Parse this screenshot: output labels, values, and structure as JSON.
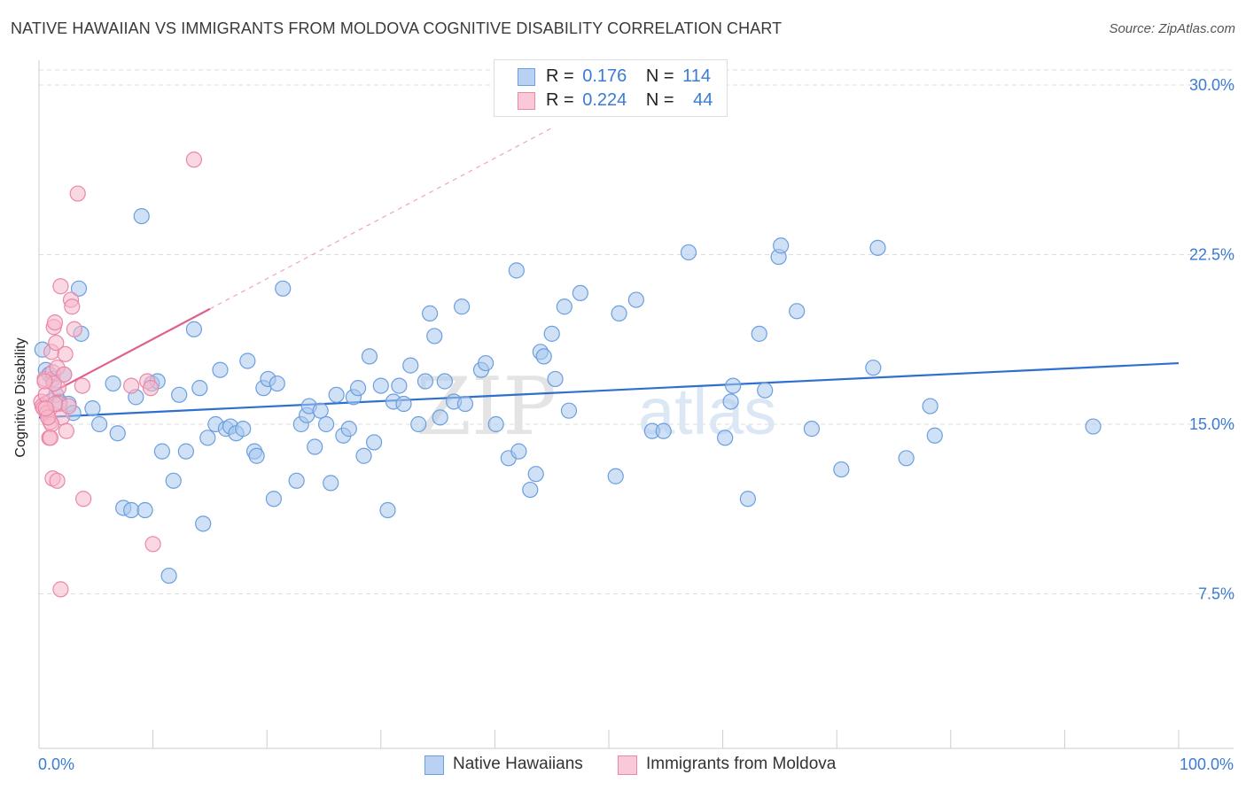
{
  "header": {
    "title": "NATIVE HAWAIIAN VS IMMIGRANTS FROM MOLDOVA COGNITIVE DISABILITY CORRELATION CHART",
    "source": "Source: ZipAtlas.com"
  },
  "legend_stats": {
    "rows": [
      {
        "r_label": "R =",
        "r_value": "0.176",
        "n_label": "N =",
        "n_value": "114"
      },
      {
        "r_label": "R =",
        "r_value": "0.224",
        "n_label": "N =",
        "n_value": "44"
      }
    ]
  },
  "bottom_legend": {
    "items": [
      "Native Hawaiians",
      "Immigrants from Moldova"
    ]
  },
  "watermark": {
    "zip": "ZIP",
    "atlas": "atlas"
  },
  "colors": {
    "blue_fill": "#a9c8ef",
    "blue_stroke": "#6a9fe0",
    "blue_line": "#2f6fd0",
    "pink_fill": "#f6b8cb",
    "pink_stroke": "#ea87a8",
    "pink_line": "#e0608a",
    "axis_label": "#3b7bd4",
    "grid": "#dddddd"
  },
  "chart_data": {
    "type": "scatter",
    "title": "NATIVE HAWAIIAN VS IMMIGRANTS FROM MOLDOVA COGNITIVE DISABILITY CORRELATION CHART",
    "xlabel": "",
    "ylabel": "Cognitive Disability",
    "xlim": [
      0,
      100
    ],
    "ylim": [
      0,
      30
    ],
    "x_tick_labels": [
      {
        "value": 0,
        "label": "0.0%"
      },
      {
        "value": 100,
        "label": "100.0%"
      }
    ],
    "x_minor_ticks": [
      0,
      10,
      20,
      30,
      40,
      50,
      60,
      70,
      80,
      90,
      100
    ],
    "y_ticks": [
      {
        "value": 7.5,
        "label": "7.5%"
      },
      {
        "value": 15.0,
        "label": "15.0%"
      },
      {
        "value": 22.5,
        "label": "22.5%"
      },
      {
        "value": 30.0,
        "label": "30.0%"
      }
    ],
    "grid": true,
    "legend_placement": "top-center",
    "series": [
      {
        "name": "Native Hawaiians",
        "color": "blue",
        "R": 0.176,
        "N": 114,
        "trend": {
          "x0": 0,
          "y0": 15.3,
          "x1": 100,
          "y1": 17.7
        },
        "points": [
          [
            0.3,
            18.3
          ],
          [
            0.6,
            17.4
          ],
          [
            0.9,
            17.2
          ],
          [
            1.2,
            17.0
          ],
          [
            1.5,
            16.3
          ],
          [
            1.8,
            16.0
          ],
          [
            2.2,
            17.2
          ],
          [
            2.6,
            15.9
          ],
          [
            3.0,
            15.5
          ],
          [
            3.5,
            21.0
          ],
          [
            3.7,
            19.0
          ],
          [
            4.7,
            15.7
          ],
          [
            5.3,
            15.0
          ],
          [
            6.5,
            16.8
          ],
          [
            6.9,
            14.6
          ],
          [
            7.4,
            11.3
          ],
          [
            8.1,
            11.2
          ],
          [
            8.5,
            16.2
          ],
          [
            9.0,
            24.2
          ],
          [
            9.3,
            11.2
          ],
          [
            9.9,
            16.8
          ],
          [
            10.4,
            16.9
          ],
          [
            10.8,
            13.8
          ],
          [
            11.4,
            8.3
          ],
          [
            11.8,
            12.5
          ],
          [
            12.3,
            16.3
          ],
          [
            12.9,
            13.8
          ],
          [
            13.6,
            19.2
          ],
          [
            14.1,
            16.6
          ],
          [
            14.4,
            10.6
          ],
          [
            14.8,
            14.4
          ],
          [
            15.5,
            15.0
          ],
          [
            15.9,
            17.4
          ],
          [
            16.4,
            14.8
          ],
          [
            16.8,
            14.9
          ],
          [
            17.3,
            14.6
          ],
          [
            17.9,
            14.8
          ],
          [
            18.3,
            17.8
          ],
          [
            18.9,
            13.8
          ],
          [
            19.1,
            13.6
          ],
          [
            19.7,
            16.6
          ],
          [
            20.1,
            17.0
          ],
          [
            20.6,
            11.7
          ],
          [
            20.9,
            16.8
          ],
          [
            21.4,
            21.0
          ],
          [
            22.6,
            12.5
          ],
          [
            23.0,
            15.0
          ],
          [
            23.5,
            15.4
          ],
          [
            23.7,
            15.8
          ],
          [
            24.2,
            14.0
          ],
          [
            24.7,
            15.6
          ],
          [
            25.2,
            15.0
          ],
          [
            25.6,
            12.4
          ],
          [
            26.1,
            16.3
          ],
          [
            26.7,
            14.5
          ],
          [
            27.2,
            14.8
          ],
          [
            27.6,
            16.2
          ],
          [
            28.0,
            16.6
          ],
          [
            28.5,
            13.6
          ],
          [
            29.0,
            18.0
          ],
          [
            29.4,
            14.2
          ],
          [
            30.0,
            16.7
          ],
          [
            30.6,
            11.2
          ],
          [
            31.1,
            16.0
          ],
          [
            31.6,
            16.7
          ],
          [
            32.0,
            15.9
          ],
          [
            32.6,
            17.6
          ],
          [
            33.3,
            15.0
          ],
          [
            33.9,
            16.9
          ],
          [
            34.3,
            19.9
          ],
          [
            34.7,
            18.9
          ],
          [
            35.2,
            15.3
          ],
          [
            35.6,
            16.9
          ],
          [
            36.4,
            16.0
          ],
          [
            37.1,
            20.2
          ],
          [
            37.4,
            15.9
          ],
          [
            38.8,
            17.4
          ],
          [
            39.2,
            17.7
          ],
          [
            40.1,
            15.0
          ],
          [
            41.2,
            13.5
          ],
          [
            41.9,
            21.8
          ],
          [
            42.1,
            13.8
          ],
          [
            43.1,
            12.1
          ],
          [
            43.6,
            12.8
          ],
          [
            44.0,
            18.2
          ],
          [
            44.3,
            18.0
          ],
          [
            45.0,
            19.0
          ],
          [
            45.3,
            17.0
          ],
          [
            46.1,
            20.2
          ],
          [
            46.5,
            15.6
          ],
          [
            47.5,
            20.8
          ],
          [
            50.6,
            12.7
          ],
          [
            50.9,
            19.9
          ],
          [
            52.4,
            20.5
          ],
          [
            53.8,
            14.7
          ],
          [
            54.8,
            14.7
          ],
          [
            57.0,
            22.6
          ],
          [
            60.2,
            14.4
          ],
          [
            60.7,
            16.0
          ],
          [
            60.9,
            16.7
          ],
          [
            62.2,
            11.7
          ],
          [
            63.2,
            19.0
          ],
          [
            63.7,
            16.5
          ],
          [
            64.9,
            22.4
          ],
          [
            65.1,
            22.9
          ],
          [
            66.5,
            20.0
          ],
          [
            67.8,
            14.8
          ],
          [
            70.4,
            13.0
          ],
          [
            73.2,
            17.5
          ],
          [
            73.6,
            22.8
          ],
          [
            76.1,
            13.5
          ],
          [
            78.2,
            15.8
          ],
          [
            78.6,
            14.5
          ],
          [
            92.5,
            14.9
          ]
        ]
      },
      {
        "name": "Immigrants from Moldova",
        "color": "pink",
        "R": 0.224,
        "N": 44,
        "trend": {
          "x0": 0,
          "y0": 16.1,
          "x1": 15.0,
          "y1": 20.1
        },
        "trend_extension": {
          "x0": 15.0,
          "y0": 20.1,
          "x1": 45.0,
          "y1": 28.1
        },
        "points": [
          [
            0.2,
            16.0
          ],
          [
            0.3,
            15.8
          ],
          [
            0.4,
            15.7
          ],
          [
            0.5,
            17.0
          ],
          [
            0.6,
            16.3
          ],
          [
            0.7,
            15.5
          ],
          [
            0.8,
            15.3
          ],
          [
            0.9,
            14.4
          ],
          [
            1.0,
            15.1
          ],
          [
            1.1,
            18.2
          ],
          [
            1.2,
            17.3
          ],
          [
            1.3,
            19.3
          ],
          [
            1.4,
            19.5
          ],
          [
            1.5,
            18.6
          ],
          [
            1.6,
            17.5
          ],
          [
            1.7,
            16.6
          ],
          [
            1.8,
            15.9
          ],
          [
            1.9,
            21.1
          ],
          [
            2.0,
            15.3
          ],
          [
            2.2,
            17.2
          ],
          [
            2.3,
            18.1
          ],
          [
            2.4,
            14.7
          ],
          [
            2.6,
            15.8
          ],
          [
            2.8,
            20.5
          ],
          [
            2.9,
            20.2
          ],
          [
            3.1,
            19.2
          ],
          [
            3.4,
            25.2
          ],
          [
            3.8,
            16.7
          ],
          [
            1.1,
            15.0
          ],
          [
            1.2,
            12.6
          ],
          [
            1.6,
            12.5
          ],
          [
            3.9,
            11.7
          ],
          [
            1.9,
            7.7
          ],
          [
            0.8,
            15.3
          ],
          [
            1.0,
            14.4
          ],
          [
            1.4,
            15.9
          ],
          [
            0.6,
            15.7
          ],
          [
            1.3,
            16.8
          ],
          [
            8.1,
            16.7
          ],
          [
            9.5,
            16.9
          ],
          [
            9.8,
            16.6
          ],
          [
            10.0,
            9.7
          ],
          [
            13.6,
            26.7
          ],
          [
            0.5,
            16.9
          ]
        ]
      }
    ]
  }
}
